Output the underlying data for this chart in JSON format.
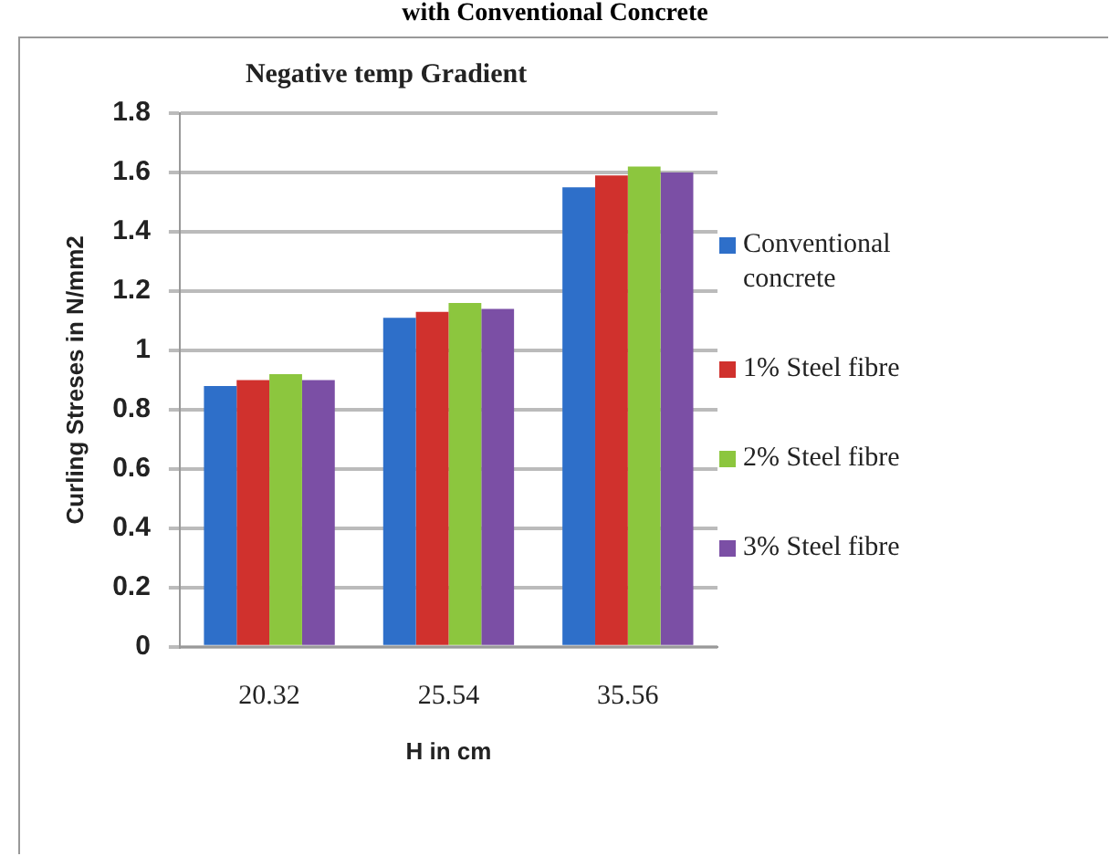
{
  "chart_data": {
    "type": "bar",
    "title": "Negative temp Gradient",
    "xlabel": "H in cm",
    "ylabel": "Curling Streses in N/mm2",
    "annotations": [
      "with Conventional Concrete"
    ],
    "categories": [
      "20.32",
      "25.54",
      "35.56"
    ],
    "series": [
      {
        "name": "Conventional concrete",
        "color": "#2e6fc9",
        "values": [
          0.88,
          1.11,
          1.55
        ]
      },
      {
        "name": "1% Steel fibre",
        "color": "#d0312d",
        "values": [
          0.9,
          1.13,
          1.59
        ]
      },
      {
        "name": "2% Steel fibre",
        "color": "#8cc63e",
        "values": [
          0.92,
          1.16,
          1.62
        ]
      },
      {
        "name": "3% Steel fibre",
        "color": "#7b4fa5",
        "values": [
          0.9,
          1.14,
          1.6
        ]
      }
    ],
    "ylim": [
      0,
      1.8
    ],
    "yticks": [
      0,
      0.2,
      0.4,
      0.6,
      0.8,
      1,
      1.2,
      1.4,
      1.6,
      1.8
    ],
    "grid": "y",
    "legend": "right"
  }
}
